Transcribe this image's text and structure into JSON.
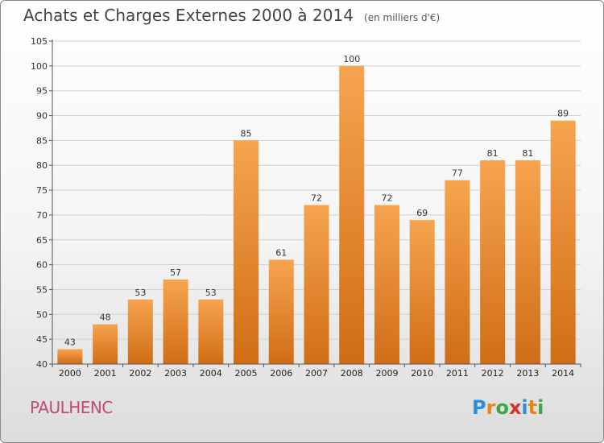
{
  "header": {
    "title": "Achats et Charges Externes 2000 à 2014",
    "unit": "(en milliers d'€)"
  },
  "footer": {
    "commune": "PAULHENC",
    "logo_letters": [
      {
        "ch": "P",
        "color": "#2a8fd6"
      },
      {
        "ch": "r",
        "color": "#e8841a"
      },
      {
        "ch": "o",
        "color": "#3aa84a"
      },
      {
        "ch": "x",
        "color": "#d6342a"
      },
      {
        "ch": "i",
        "color": "#2a8fd6"
      },
      {
        "ch": "t",
        "color": "#e8841a"
      },
      {
        "ch": "i",
        "color": "#3aa84a"
      }
    ]
  },
  "chart_data": {
    "type": "bar",
    "categories": [
      "2000",
      "2001",
      "2002",
      "2003",
      "2004",
      "2005",
      "2006",
      "2007",
      "2008",
      "2009",
      "2010",
      "2011",
      "2012",
      "2013",
      "2014"
    ],
    "values": [
      43,
      48,
      53,
      57,
      53,
      85,
      61,
      72,
      100,
      72,
      69,
      77,
      81,
      81,
      89
    ],
    "ylim": [
      40,
      105
    ],
    "yticks": [
      40,
      45,
      50,
      55,
      60,
      65,
      70,
      75,
      80,
      85,
      90,
      95,
      100,
      105
    ],
    "grid": true,
    "bar_color_top": "#f7a44e",
    "bar_color_bottom": "#cf6d16"
  }
}
